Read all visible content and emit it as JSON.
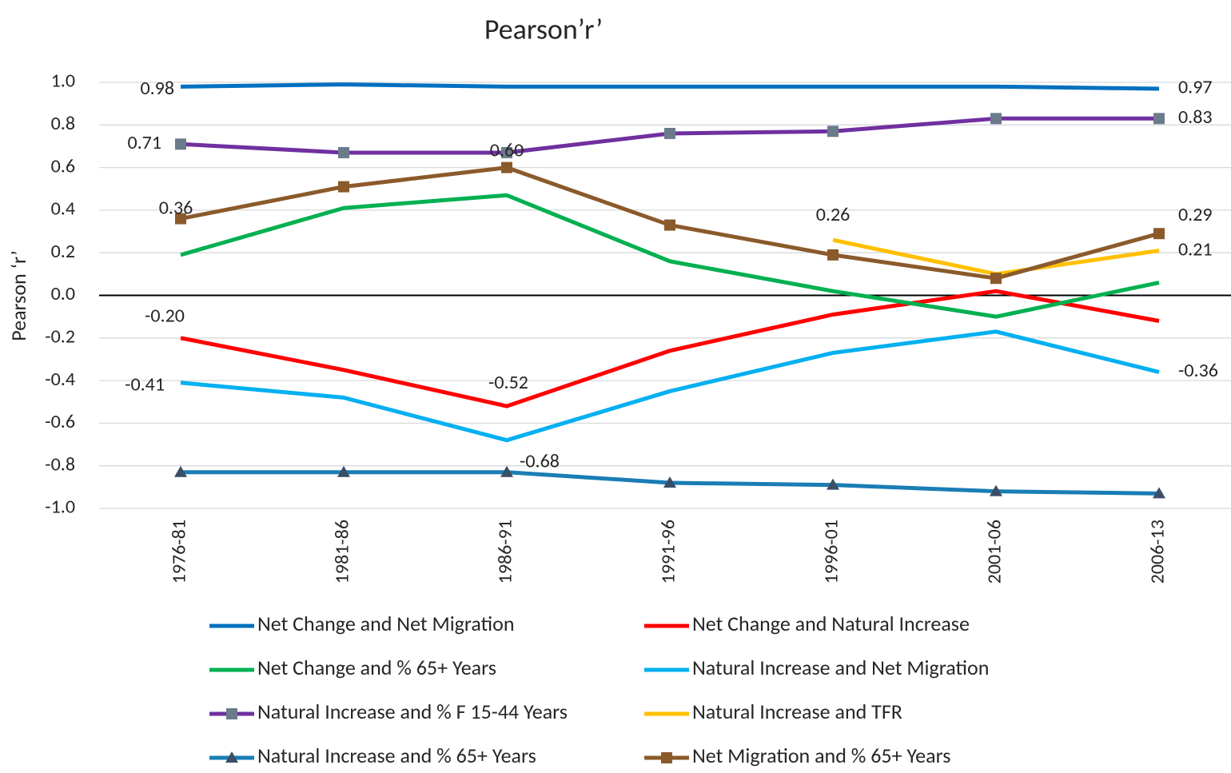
{
  "chart_data": {
    "type": "line",
    "title": "Pearson’r’",
    "y_label": "Pearson ‘r’",
    "categories": [
      "1976-81",
      "1981-86",
      "1986-91",
      "1991-96",
      "1996-01",
      "2001-06",
      "2006-13"
    ],
    "ylim": [
      -1.0,
      1.0
    ],
    "yticks": [
      {
        "value": 1.0,
        "label": "1.0"
      },
      {
        "value": 0.8,
        "label": "0.8"
      },
      {
        "value": 0.6,
        "label": "0.6"
      },
      {
        "value": 0.4,
        "label": "0.4"
      },
      {
        "value": 0.2,
        "label": "0.2"
      },
      {
        "value": 0.0,
        "label": "0.0"
      },
      {
        "value": -0.2,
        "label": "-0.2"
      },
      {
        "value": -0.4,
        "label": "-0.4"
      },
      {
        "value": -0.6,
        "label": "-0.6"
      },
      {
        "value": -0.8,
        "label": "-0.8"
      },
      {
        "value": -1.0,
        "label": "-1.0"
      }
    ],
    "grid": true,
    "series": [
      {
        "name": "Net Change and Net Migration",
        "color": "#0070c0",
        "values": [
          0.98,
          0.99,
          0.98,
          0.98,
          0.98,
          0.98,
          0.97
        ],
        "value_labels": [
          "0.98",
          null,
          null,
          null,
          null,
          null,
          "0.97"
        ]
      },
      {
        "name": "Net Change and Natural Increase",
        "color": "#ff0000",
        "values": [
          -0.2,
          -0.35,
          -0.52,
          -0.26,
          -0.09,
          0.02,
          -0.12
        ],
        "value_labels": [
          "-0.20",
          null,
          "-0.52",
          null,
          null,
          null,
          null
        ]
      },
      {
        "name": "Net Change and % 65+ Years",
        "color": "#00b050",
        "values": [
          0.19,
          0.41,
          0.47,
          0.16,
          0.02,
          -0.1,
          0.06
        ]
      },
      {
        "name": "Natural Increase and Net Migration",
        "color": "#00b0f0",
        "values": [
          -0.41,
          -0.48,
          -0.68,
          -0.45,
          -0.27,
          -0.17,
          -0.36
        ],
        "value_labels": [
          "-0.41",
          null,
          "-0.68",
          null,
          null,
          null,
          "-0.36"
        ]
      },
      {
        "name": "Natural Increase and % F 15-44 Years",
        "color": "#7030a0",
        "marker": "square",
        "marker_color": "#6b7b8c",
        "values": [
          0.71,
          0.67,
          0.67,
          0.76,
          0.77,
          0.83,
          0.83
        ],
        "value_labels": [
          "0.71",
          null,
          null,
          null,
          null,
          null,
          "0.83"
        ]
      },
      {
        "name": "Natural Increase and TFR",
        "color": "#ffc000",
        "values": [
          null,
          null,
          null,
          null,
          0.26,
          0.1,
          0.21
        ],
        "value_labels": [
          null,
          null,
          null,
          null,
          "0.26",
          null,
          "0.21"
        ]
      },
      {
        "name": "Natural Increase and % 65+ Years",
        "color": "#1a7db5",
        "marker": "triangle",
        "marker_color": "#3b4e66",
        "values": [
          -0.83,
          -0.83,
          -0.83,
          -0.88,
          -0.89,
          -0.92,
          -0.93
        ]
      },
      {
        "name": "Net Migration and % 65+ Years",
        "color": "#8b5a2b",
        "marker": "square",
        "marker_color": "#8b5a2b",
        "values": [
          0.36,
          0.51,
          0.6,
          0.33,
          0.19,
          0.08,
          0.29
        ],
        "value_labels": [
          "0.36",
          null,
          "0.60",
          null,
          null,
          null,
          "0.29"
        ]
      }
    ]
  }
}
